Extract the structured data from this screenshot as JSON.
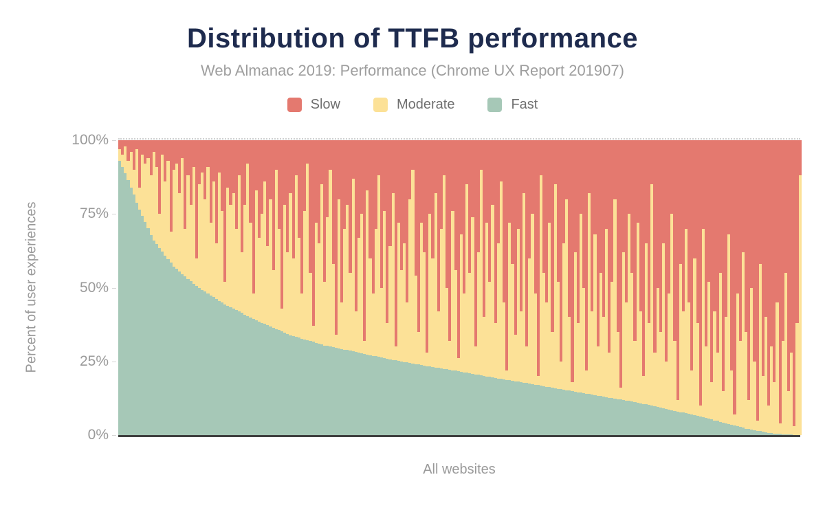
{
  "chart_data": {
    "type": "bar",
    "variant": "100%-stacked-columns",
    "title": "Distribution of TTFB performance",
    "subtitle": "Web Almanac 2019: Performance (Chrome UX Report 201907)",
    "xlabel": "All websites",
    "ylabel": "Percent of user experiences",
    "ylim": [
      0,
      100
    ],
    "yticks": [
      "100%",
      "75%",
      "50%",
      "25%",
      "0%"
    ],
    "grid": false,
    "top_gridline_dashed": true,
    "legend_position": "top",
    "legend": [
      {
        "label": "Slow",
        "color": "#e4796f"
      },
      {
        "label": "Moderate",
        "color": "#fce197"
      },
      {
        "label": "Fast",
        "color": "#a6c8b7"
      }
    ],
    "x_description": "One column per website, sorted by percent of fast TTFB experiences descending",
    "series": [
      {
        "name": "Slow",
        "color": "#e4796f",
        "values": [
          3,
          5,
          2,
          7,
          4,
          10,
          3,
          16,
          5,
          8,
          6,
          12,
          4,
          9,
          25,
          5,
          14,
          7,
          31,
          10,
          8,
          18,
          6,
          30,
          12,
          22,
          9,
          40,
          15,
          11,
          20,
          9,
          28,
          14,
          35,
          11,
          24,
          48,
          16,
          22,
          18,
          30,
          12,
          38,
          22,
          8,
          28,
          52,
          17,
          33,
          25,
          14,
          36,
          20,
          44,
          10,
          30,
          57,
          22,
          38,
          18,
          40,
          12,
          33,
          52,
          24,
          8,
          45,
          63,
          28,
          35,
          15,
          48,
          26,
          10,
          42,
          66,
          20,
          55,
          30,
          22,
          45,
          13,
          58,
          33,
          25,
          68,
          17,
          40,
          52,
          30,
          12,
          50,
          24,
          62,
          36,
          18,
          70,
          28,
          44,
          35,
          55,
          20,
          10,
          46,
          65,
          28,
          38,
          72,
          25,
          40,
          18,
          58,
          30,
          12,
          50,
          68,
          24,
          44,
          74,
          32,
          52,
          15,
          45,
          26,
          70,
          38,
          10,
          60,
          28,
          48,
          22,
          62,
          35,
          14,
          55,
          78,
          28,
          42,
          66,
          30,
          58,
          18,
          70,
          40,
          25,
          52,
          80,
          12,
          45,
          55,
          28,
          65,
          15,
          48,
          75,
          35,
          20,
          60,
          82,
          38,
          62,
          25,
          50,
          78,
          18,
          58,
          32,
          70,
          45,
          60,
          30,
          72,
          48,
          20,
          65,
          84,
          38,
          55,
          25,
          45,
          68,
          28,
          58,
          80,
          35,
          62,
          15,
          72,
          50,
          65,
          35,
          75,
          52,
          25,
          68,
          88,
          42,
          58,
          30,
          55,
          78,
          40,
          62,
          90,
          30,
          70,
          48,
          82,
          58,
          72,
          45,
          85,
          60,
          32,
          78,
          93,
          52,
          68,
          38,
          65,
          88,
          50,
          75,
          95,
          42,
          80,
          60,
          90,
          70,
          82,
          55,
          96,
          68,
          45,
          85,
          72,
          97,
          62,
          12
        ]
      },
      {
        "name": "Moderate",
        "color": "#fce197",
        "values": [
          4,
          4.1,
          9.2,
          6.6,
          12,
          8.5,
          18.1,
          7.6,
          20.7,
          19.8,
          23.9,
          20.1,
          30,
          26.3,
          11.6,
          32.8,
          25.1,
          33.3,
          10.6,
          32.9,
          35.7,
          26.6,
          39.4,
          16.2,
          35.1,
          25.9,
          39.8,
          9.4,
          35.1,
          39.7,
          31.3,
          43,
          24.6,
          39.2,
          18.8,
          43.5,
          31.1,
          7.6,
          40.1,
          34.6,
          39.1,
          27.6,
          46.1,
          20.6,
          37.1,
          51.6,
          32.1,
          8.6,
          44.1,
          28.5,
          36.9,
          48.3,
          26.8,
          43.2,
          19.6,
          54,
          34.4,
          7.9,
          43.3,
          27.7,
          48.1,
          26.4,
          54.7,
          34,
          15.3,
          43.5,
          59.8,
          23.1,
          5.4,
          40.7,
          34,
          54.3,
          21.6,
          43.8,
          60,
          28.2,
          4.4,
          50.6,
          15.8,
          41,
          49.2,
          26.4,
          58.6,
          13.8,
          39,
          47.3,
          4.5,
          55.7,
          32.9,
          21.1,
          43.3,
          61.5,
          23.7,
          49.9,
          12.1,
          38.3,
          56.6,
          4.7,
          46.9,
          31.1,
          40.2,
          20.4,
          55.6,
          65.7,
          29.9,
          11.1,
          48.2,
          38.4,
          4.6,
          51.7,
          36.9,
          59.1,
          19.2,
          47.4,
          65.6,
          27.7,
          9.9,
          54.1,
          34.2,
          4.4,
          46.6,
          26.7,
          63.9,
          34.1,
          53.3,
          9.4,
          41.6,
          69.8,
          19.9,
          52.1,
          32.3,
          58.5,
          18.6,
          45.8,
          66.9,
          26.1,
          3.3,
          53.4,
          39.6,
          15.8,
          51.9,
          24.1,
          64.3,
          12.4,
          42.6,
          57.8,
          30.9,
          3.1,
          71.3,
          38.4,
          28.6,
          55.8,
          18.9,
          69.1,
          36.3,
          9.4,
          49.6,
          64.8,
          24.9,
          3.1,
          47.3,
          23.5,
          60.6,
          35.8,
          7.9,
          68.1,
          28.3,
          54.4,
          16.6,
          41.8,
          26.9,
          57.1,
          15.3,
          39.4,
          67.6,
          22.8,
          3.9,
          50.1,
          33.3,
          63.4,
          43.6,
          20.8,
          61,
          31.2,
          9.4,
          54.6,
          27.8,
          75,
          18.3,
          40.5,
          25.7,
          55.9,
          16.1,
          39.3,
          66.5,
          23.8,
          4,
          50.2,
          34.4,
          62.6,
          37.8,
          15,
          53.3,
          31.5,
          3.8,
          64,
          24.2,
          46.5,
          12.7,
          37,
          23.2,
          50.5,
          10.7,
          36,
          64.2,
          18.5,
          3.8,
          45,
          29.3,
          59.5,
          32.8,
          10,
          48.2,
          23.3,
          3.5,
          56.7,
          18.9,
          39,
          9.2,
          29.4,
          17.5,
          44.6,
          3.6,
          31.7,
          54.8,
          14.8,
          27.8,
          2.9,
          37.9,
          88
        ]
      },
      {
        "name": "Fast",
        "color": "#a6c8b7",
        "values": [
          93,
          90.9,
          88.8,
          86.4,
          84,
          81.5,
          78.9,
          76.4,
          74.3,
          72.2,
          70.1,
          67.9,
          66,
          64.7,
          63.4,
          62.2,
          60.9,
          59.7,
          58.4,
          57.1,
          56.3,
          55.4,
          54.6,
          53.8,
          52.9,
          52.1,
          51.2,
          50.6,
          49.9,
          49.3,
          48.7,
          48,
          47.4,
          46.8,
          46.2,
          45.5,
          44.9,
          44.4,
          43.9,
          43.4,
          42.9,
          42.4,
          41.9,
          41.4,
          40.9,
          40.4,
          39.9,
          39.4,
          38.9,
          38.5,
          38.1,
          37.7,
          37.2,
          36.8,
          36.4,
          36,
          35.6,
          35.1,
          34.7,
          34.3,
          33.9,
          33.6,
          33.3,
          33,
          32.7,
          32.5,
          32.2,
          31.9,
          31.6,
          31.3,
          31,
          30.7,
          30.4,
          30.2,
          30,
          29.8,
          29.6,
          29.4,
          29.2,
          29,
          28.8,
          28.6,
          28.4,
          28.2,
          28,
          27.7,
          27.5,
          27.3,
          27.1,
          26.9,
          26.7,
          26.5,
          26.3,
          26.1,
          25.9,
          25.7,
          25.4,
          25.3,
          25.1,
          24.9,
          24.8,
          24.6,
          24.4,
          24.3,
          24.1,
          23.9,
          23.8,
          23.6,
          23.4,
          23.3,
          23.1,
          22.9,
          22.8,
          22.6,
          22.4,
          22.3,
          22.1,
          21.9,
          21.8,
          21.6,
          21.4,
          21.3,
          21.1,
          20.9,
          20.7,
          20.6,
          20.4,
          20.2,
          20.1,
          19.9,
          19.7,
          19.5,
          19.4,
          19.2,
          19.1,
          18.9,
          18.7,
          18.6,
          18.4,
          18.2,
          18.1,
          17.9,
          17.7,
          17.6,
          17.4,
          17.2,
          17.1,
          16.9,
          16.7,
          16.6,
          16.4,
          16.2,
          16.1,
          15.9,
          15.7,
          15.6,
          15.4,
          15.2,
          15.1,
          14.9,
          14.7,
          14.5,
          14.4,
          14.2,
          14.1,
          13.9,
          13.7,
          13.6,
          13.4,
          13.2,
          13.1,
          12.9,
          12.7,
          12.6,
          12.4,
          12.2,
          12.1,
          11.9,
          11.7,
          11.6,
          11.4,
          11.2,
          11,
          10.8,
          10.6,
          10.4,
          10.2,
          10,
          9.7,
          9.5,
          9.3,
          9.1,
          8.9,
          8.7,
          8.5,
          8.2,
          8,
          7.8,
          7.6,
          7.4,
          7.2,
          7,
          6.7,
          6.5,
          6.2,
          6,
          5.8,
          5.5,
          5.3,
          5,
          4.8,
          4.5,
          4.3,
          4,
          3.8,
          3.5,
          3.2,
          3,
          2.7,
          2.5,
          2.2,
          2,
          1.8,
          1.7,
          1.5,
          1.3,
          1.1,
          1,
          0.8,
          0.6,
          0.5,
          0.4,
          0.4,
          0.3,
          0.3,
          0.2,
          0.2,
          0.1,
          0.1,
          0
        ]
      }
    ]
  }
}
